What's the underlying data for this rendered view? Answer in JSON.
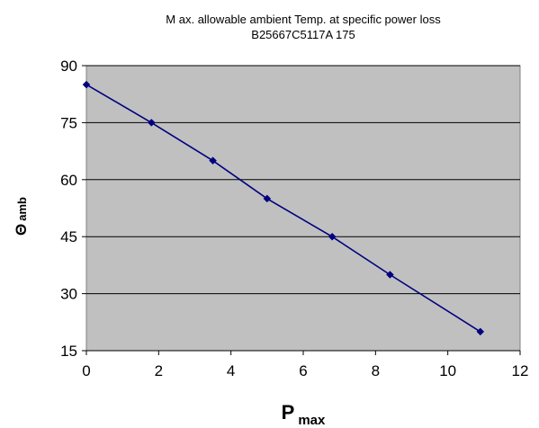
{
  "chart_data": {
    "type": "line",
    "title_line1": "M ax. allowable ambient Temp. at specific power loss",
    "title_line2": "B25667C5117A 175",
    "xlabel_main": "P",
    "xlabel_sub": "max",
    "ylabel_symbol": "Θ",
    "ylabel_sub": "amb",
    "xlim": [
      0,
      12
    ],
    "ylim": [
      15,
      90
    ],
    "xticks": [
      0,
      2,
      4,
      6,
      8,
      10,
      12
    ],
    "yticks": [
      15,
      30,
      45,
      60,
      75,
      90
    ],
    "grid": "horizontal",
    "series": [
      {
        "x": [
          0,
          1.8,
          3.5,
          5.0,
          6.8,
          8.4,
          10.9
        ],
        "y": [
          85,
          75,
          65,
          55,
          45,
          35,
          20
        ]
      }
    ],
    "colors": {
      "plot_background": "#c0c0c0",
      "line": "#000080",
      "marker": "#000080",
      "grid": "#000000"
    }
  }
}
